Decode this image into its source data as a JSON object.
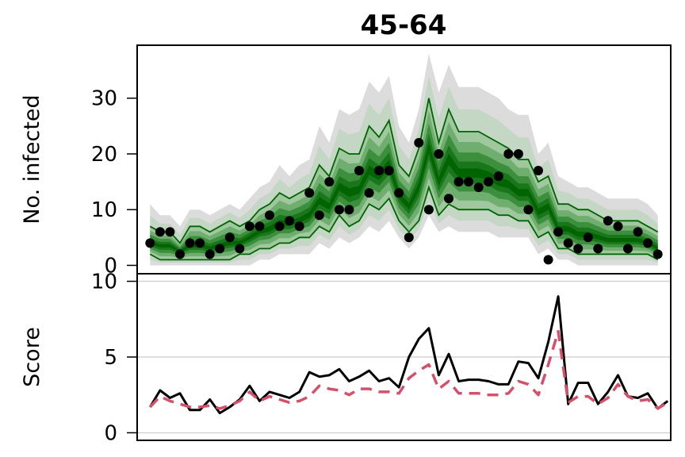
{
  "chart_data": [
    {
      "type": "line",
      "title": "45-64",
      "ylabel": "No. infected",
      "xlabel": "",
      "ylim": [
        -1.5,
        39.5
      ],
      "xlim": [
        -1.3,
        52.3
      ],
      "yticks": [
        0,
        10,
        20,
        30
      ],
      "grid": false,
      "colors": {
        "ci_line": "#006400",
        "band_levels": [
          "#dcdcdc",
          "#c4d7c4",
          "#9fc89f",
          "#6fae6f",
          "#3c8f3c",
          "#1a761a",
          "#006400"
        ],
        "points": "#000000"
      },
      "series": [
        {
          "name": "",
          "kind": "points",
          "values": [
            4,
            6,
            6,
            2,
            4,
            4,
            2,
            3,
            5,
            3,
            7,
            7,
            9,
            7,
            8,
            7,
            13,
            9,
            15,
            10,
            10,
            17,
            13,
            17,
            17,
            13,
            5,
            22,
            10,
            20,
            12,
            15,
            15,
            14,
            15,
            16,
            20,
            20,
            10,
            17,
            1,
            6,
            4,
            3,
            5,
            3,
            8,
            7,
            3,
            6,
            4,
            2
          ]
        },
        {
          "name": "",
          "kind": "upper-interval",
          "values": [
            7,
            6,
            6,
            4,
            7,
            7,
            6,
            7,
            8,
            7,
            8,
            10,
            11,
            13,
            12,
            13,
            14,
            18,
            16,
            21,
            20,
            20,
            25,
            23,
            26,
            18,
            16,
            21,
            30,
            22,
            28,
            24,
            24,
            24,
            23,
            22,
            21,
            19,
            19,
            15,
            16,
            11,
            11,
            10,
            10,
            9,
            8,
            8,
            8,
            8,
            7,
            6
          ]
        },
        {
          "name": "",
          "kind": "lower-interval",
          "values": [
            2,
            1,
            1,
            1,
            1,
            1,
            1,
            1,
            1,
            2,
            2,
            3,
            3,
            4,
            4,
            5,
            5,
            7,
            6,
            9,
            7,
            8,
            11,
            10,
            12,
            8,
            6,
            8,
            14,
            9,
            11,
            10,
            10,
            10,
            10,
            9,
            9,
            8,
            8,
            5,
            6,
            3,
            3,
            2,
            2,
            2,
            2,
            2,
            2,
            2,
            2,
            1
          ]
        },
        {
          "name": "",
          "kind": "median",
          "values": [
            4,
            3.5,
            3.5,
            2.5,
            3.5,
            3.5,
            3,
            3.5,
            4,
            4,
            5,
            6,
            6.5,
            7.5,
            7.5,
            8,
            9,
            11.5,
            10.5,
            14,
            13,
            13.5,
            17,
            16,
            18,
            12.5,
            10.5,
            14,
            21,
            15,
            19,
            16.5,
            16.5,
            16.5,
            16,
            15,
            14.5,
            13,
            13,
            9.5,
            10.5,
            6.5,
            6.5,
            5.5,
            5.5,
            5,
            4.5,
            4.5,
            4.5,
            4.5,
            4,
            3
          ]
        },
        {
          "name": "",
          "kind": "outer-upper",
          "values": [
            11,
            9,
            9,
            7,
            10,
            10,
            9,
            10,
            11,
            10,
            12,
            14,
            15,
            18,
            16,
            18,
            19,
            25,
            22,
            28,
            27,
            28,
            33,
            31,
            34,
            25,
            22,
            28,
            38,
            31,
            36,
            32,
            32,
            32,
            31,
            30,
            28,
            27,
            27,
            20,
            22,
            16,
            15,
            14,
            14,
            13,
            12,
            12,
            12,
            12,
            11,
            9
          ]
        },
        {
          "name": "",
          "kind": "outer-lower",
          "values": [
            0,
            0,
            0,
            0,
            0,
            0,
            0,
            0,
            0,
            0,
            0,
            1,
            1,
            2,
            2,
            2,
            2,
            4,
            3,
            5,
            4,
            5,
            7,
            6,
            8,
            5,
            3,
            5,
            9,
            6,
            7,
            6,
            6,
            6,
            6,
            5,
            5,
            5,
            5,
            2,
            3,
            1,
            1,
            0,
            0,
            0,
            0,
            0,
            0,
            0,
            0,
            0
          ]
        }
      ]
    },
    {
      "type": "line",
      "title": "",
      "ylabel": "Score",
      "xlabel": "",
      "ylim": [
        -0.5,
        10.5
      ],
      "xlim": [
        -1.3,
        52.3
      ],
      "yticks": [
        0,
        5,
        10
      ],
      "grid": true,
      "colors": {
        "solid": "#000000",
        "dashed": "#d4506b",
        "grid": "#d3d3d3"
      },
      "series": [
        {
          "name": "",
          "style": "solid",
          "values": [
            1.7,
            2.8,
            2.3,
            2.6,
            1.5,
            1.5,
            2.2,
            1.3,
            1.7,
            2.2,
            3.1,
            2.1,
            2.7,
            2.5,
            2.3,
            2.7,
            4.0,
            3.7,
            3.8,
            4.2,
            3.4,
            3.7,
            4.1,
            3.4,
            3.6,
            3.0,
            5.0,
            6.2,
            6.9,
            3.8,
            5.2,
            3.4,
            3.5,
            3.5,
            3.4,
            3.2,
            3.2,
            4.7,
            4.6,
            3.6,
            6.0,
            9.0,
            1.9,
            3.3,
            3.3,
            1.9,
            2.7,
            3.8,
            2.4,
            2.3,
            2.6,
            1.6,
            2.1
          ]
        },
        {
          "name": "",
          "style": "dashed",
          "values": [
            1.7,
            2.4,
            2.1,
            1.9,
            1.7,
            1.7,
            1.8,
            1.6,
            1.8,
            2.1,
            2.7,
            2.1,
            2.4,
            2.2,
            2.0,
            2.1,
            2.4,
            3.1,
            2.9,
            2.8,
            2.5,
            2.9,
            2.9,
            2.7,
            2.7,
            2.6,
            3.6,
            4.1,
            4.5,
            2.9,
            3.4,
            2.6,
            2.6,
            2.6,
            2.5,
            2.5,
            2.6,
            3.4,
            3.2,
            2.5,
            4.5,
            6.7,
            2.0,
            2.4,
            2.4,
            1.9,
            2.3,
            3.2,
            2.4,
            2.1,
            2.2,
            1.6,
            2.0
          ]
        }
      ]
    }
  ]
}
